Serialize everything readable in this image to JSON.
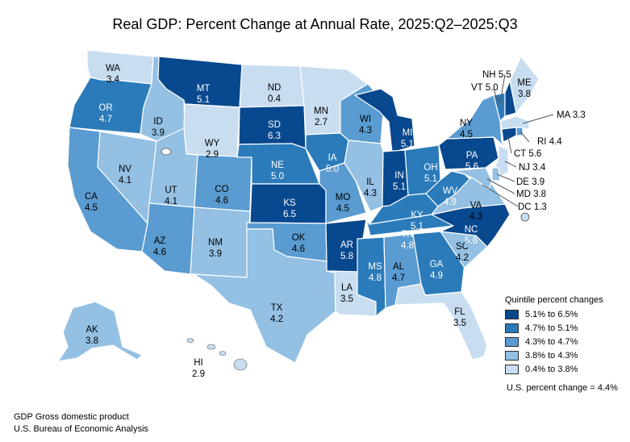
{
  "title": "Real GDP: Percent Change at Annual Rate, 2025:Q2–2025:Q3",
  "legend": {
    "title": "Quintile percent changes",
    "items": [
      {
        "label": "5.1% to 6.5%",
        "color": "#08488e"
      },
      {
        "label": "4.7% to 5.1%",
        "color": "#2b7bba"
      },
      {
        "label": "4.3% to 4.7%",
        "color": "#5a9bd1"
      },
      {
        "label": "3.8% to 4.3%",
        "color": "#94c0e3"
      },
      {
        "label": "0.4% to 3.8%",
        "color": "#c9ddf1"
      }
    ]
  },
  "us_change": "U.S. percent change = 4.4%",
  "footer": {
    "line1": "GDP Gross domestic product",
    "line2": "U.S. Bureau of Economic Analysis"
  },
  "states": {
    "WA": {
      "abbr": "WA",
      "value": "3.4",
      "quintile": 5
    },
    "OR": {
      "abbr": "OR",
      "value": "4.7",
      "quintile": 2
    },
    "CA": {
      "abbr": "CA",
      "value": "4.5",
      "quintile": 3
    },
    "NV": {
      "abbr": "NV",
      "value": "4.1",
      "quintile": 4
    },
    "ID": {
      "abbr": "ID",
      "value": "3.9",
      "quintile": 4
    },
    "MT": {
      "abbr": "MT",
      "value": "5.1",
      "quintile": 1
    },
    "WY": {
      "abbr": "WY",
      "value": "2.9",
      "quintile": 5
    },
    "UT": {
      "abbr": "UT",
      "value": "4.1",
      "quintile": 4
    },
    "AZ": {
      "abbr": "AZ",
      "value": "4.6",
      "quintile": 3
    },
    "CO": {
      "abbr": "CO",
      "value": "4.6",
      "quintile": 3
    },
    "NM": {
      "abbr": "NM",
      "value": "3.9",
      "quintile": 4
    },
    "ND": {
      "abbr": "ND",
      "value": "0.4",
      "quintile": 5
    },
    "SD": {
      "abbr": "SD",
      "value": "6.3",
      "quintile": 1
    },
    "NE": {
      "abbr": "NE",
      "value": "5.0",
      "quintile": 2
    },
    "KS": {
      "abbr": "KS",
      "value": "6.5",
      "quintile": 1
    },
    "OK": {
      "abbr": "OK",
      "value": "4.6",
      "quintile": 3
    },
    "TX": {
      "abbr": "TX",
      "value": "4.2",
      "quintile": 4
    },
    "MN": {
      "abbr": "MN",
      "value": "2.7",
      "quintile": 5
    },
    "IA": {
      "abbr": "IA",
      "value": "5.0",
      "quintile": 2
    },
    "MO": {
      "abbr": "MO",
      "value": "4.5",
      "quintile": 3
    },
    "AR": {
      "abbr": "AR",
      "value": "5.8",
      "quintile": 1
    },
    "LA": {
      "abbr": "LA",
      "value": "3.5",
      "quintile": 5
    },
    "WI": {
      "abbr": "WI",
      "value": "4.3",
      "quintile": 3
    },
    "IL": {
      "abbr": "IL",
      "value": "4.3",
      "quintile": 4
    },
    "MI": {
      "abbr": "MI",
      "value": "5.1",
      "quintile": 1
    },
    "IN": {
      "abbr": "IN",
      "value": "5.1",
      "quintile": 1
    },
    "OH": {
      "abbr": "OH",
      "value": "5.1",
      "quintile": 2
    },
    "KY": {
      "abbr": "KY",
      "value": "5.1",
      "quintile": 2
    },
    "TN": {
      "abbr": "TN",
      "value": "4.8",
      "quintile": 2
    },
    "MS": {
      "abbr": "MS",
      "value": "4.8",
      "quintile": 2
    },
    "AL": {
      "abbr": "AL",
      "value": "4.7",
      "quintile": 3
    },
    "GA": {
      "abbr": "GA",
      "value": "4.9",
      "quintile": 2
    },
    "FL": {
      "abbr": "FL",
      "value": "3.5",
      "quintile": 5
    },
    "SC": {
      "abbr": "SC",
      "value": "4.2",
      "quintile": 4
    },
    "NC": {
      "abbr": "NC",
      "value": "5.6",
      "quintile": 1
    },
    "VA": {
      "abbr": "VA",
      "value": "4.3",
      "quintile": 4
    },
    "WV": {
      "abbr": "WV",
      "value": "4.9",
      "quintile": 2
    },
    "PA": {
      "abbr": "PA",
      "value": "5.6",
      "quintile": 1
    },
    "NY": {
      "abbr": "NY",
      "value": "4.5",
      "quintile": 3
    },
    "VT": {
      "abbr": "VT",
      "value": "5.0",
      "quintile": 2
    },
    "NH": {
      "abbr": "NH",
      "value": "5.5",
      "quintile": 1
    },
    "ME": {
      "abbr": "ME",
      "value": "3.8",
      "quintile": 5
    },
    "MA": {
      "abbr": "MA",
      "value": "3.3",
      "quintile": 5
    },
    "RI": {
      "abbr": "RI",
      "value": "4.4",
      "quintile": 3
    },
    "CT": {
      "abbr": "CT",
      "value": "5.6",
      "quintile": 1
    },
    "NJ": {
      "abbr": "NJ",
      "value": "3.4",
      "quintile": 5
    },
    "DE": {
      "abbr": "DE",
      "value": "3.9",
      "quintile": 4
    },
    "MD": {
      "abbr": "MD",
      "value": "3.8",
      "quintile": 4
    },
    "DC": {
      "abbr": "DC",
      "value": "1.3",
      "quintile": 5
    },
    "AK": {
      "abbr": "AK",
      "value": "3.8",
      "quintile": 4
    },
    "HI": {
      "abbr": "HI",
      "value": "2.9",
      "quintile": 5
    }
  }
}
